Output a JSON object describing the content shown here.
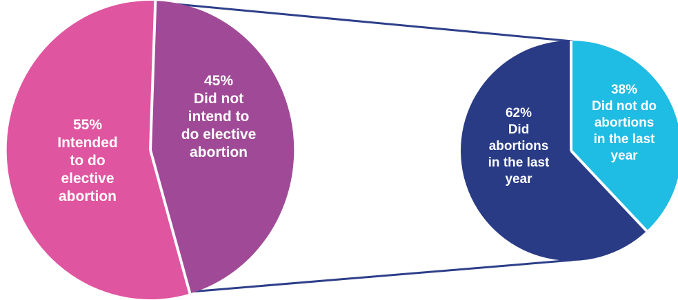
{
  "chart_data": [
    {
      "type": "pie",
      "slices": [
        {
          "label_lines": [
            "55%",
            "Intended",
            "to do",
            "elective",
            "abortion"
          ],
          "value": 55,
          "color": "#e0559f"
        },
        {
          "label_lines": [
            "45%",
            "Did not",
            "intend to",
            "do elective",
            "abortion"
          ],
          "value": 45,
          "color": "#a04a97"
        }
      ]
    },
    {
      "type": "pie",
      "slices": [
        {
          "label_lines": [
            "62%",
            "Did",
            "abortions",
            "in the last",
            "year"
          ],
          "value": 62,
          "color": "#293b85"
        },
        {
          "label_lines": [
            "38%",
            "Did not do",
            "abortions",
            "in the last",
            "year"
          ],
          "value": 38,
          "color": "#1fbce3"
        }
      ]
    }
  ],
  "colors": {
    "connector": "#2d3f8a",
    "separator": "#ffffff"
  }
}
